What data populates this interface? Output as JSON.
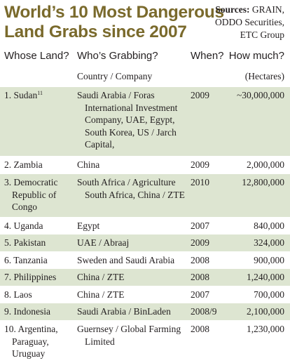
{
  "title": {
    "line1": "World’s 10 Most Dangerous",
    "line2": "Land Grabs since 2007"
  },
  "sources": {
    "label": "Sources:",
    "line1": "GRAIN,",
    "line2": "ODDO Securities,",
    "line3": "ETC Group"
  },
  "headers": {
    "land": "Whose Land?",
    "grab": "Who’s Grabbing?",
    "when": "When?",
    "much": "How much?"
  },
  "subheaders": {
    "grab": "Country / Company",
    "much": "(Hectares)"
  },
  "rows": [
    {
      "land": "1. Sudan",
      "note": "11",
      "grab": "Saudi Arabia / Foras International Investment Company, UAE, Egypt, South Korea, US / Jarch Capital,",
      "when": "2009",
      "much": "~30,000,000"
    },
    {
      "land": "2. Zambia",
      "grab": "China",
      "when": "2009",
      "much": "2,000,000"
    },
    {
      "land": "3. Democratic Republic of Congo",
      "grab": "South Africa / Agriculture South Africa, China / ZTE",
      "when": "2010",
      "much": "12,800,000"
    },
    {
      "land": "4. Uganda",
      "grab": "Egypt",
      "when": "2007",
      "much": "840,000"
    },
    {
      "land": "5. Pakistan",
      "grab": "UAE / Abraaj",
      "when": "2009",
      "much": "324,000"
    },
    {
      "land": "6. Tanzania",
      "grab": "Sweden and Saudi Arabia",
      "when": "2008",
      "much": "900,000"
    },
    {
      "land": "7. Philippines",
      "grab": "China / ZTE",
      "when": "2008",
      "much": "1,240,000"
    },
    {
      "land": "8. Laos",
      "grab": "China / ZTE",
      "when": "2007",
      "much": "700,000"
    },
    {
      "land": "9. Indonesia",
      "grab": "Saudi Arabia / BinLaden",
      "when": "2008/9",
      "much": "2,100,000"
    },
    {
      "land": "10. Argentina, Paraguay, Uruguay",
      "grab": "Guernsey / Global Farming Limited",
      "when": "2008",
      "much": "1,230,000"
    }
  ],
  "colors": {
    "title": "#7a6a2c",
    "row_shade": "#dde5d1",
    "text": "#231f20"
  }
}
